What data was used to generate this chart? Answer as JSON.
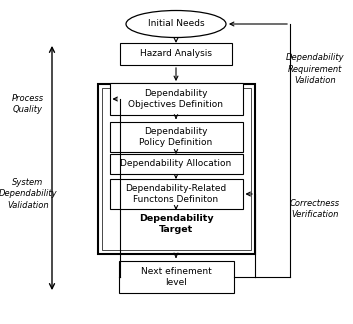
{
  "fig_width": 3.53,
  "fig_height": 3.24,
  "dpi": 100,
  "bg_color": "#ffffff",
  "ellipse_text": "Initial Needs",
  "hazard_text": "Hazard Analysis",
  "dep_obj_text": "Dependability\nObjectives Definition",
  "dep_pol_text": "Dependability\nPolicy Definition",
  "dep_alloc_text": "Dependability Allocation",
  "dep_func_text": "Dependability-Related\nFunctons Definiton",
  "dep_target_text": "Dependability\nTarget",
  "next_ref_text": "Next efinement\nlevel",
  "label_dep_req": "Dependability\nRequirement\nValidation",
  "label_proc_qual": "Process\nQuality",
  "label_sys_dep": "System\nDependability\nValidation",
  "label_correct": "Correctness\nVerification",
  "fs": 6.5,
  "fs_bold": 6.8,
  "fs_label": 6.0
}
